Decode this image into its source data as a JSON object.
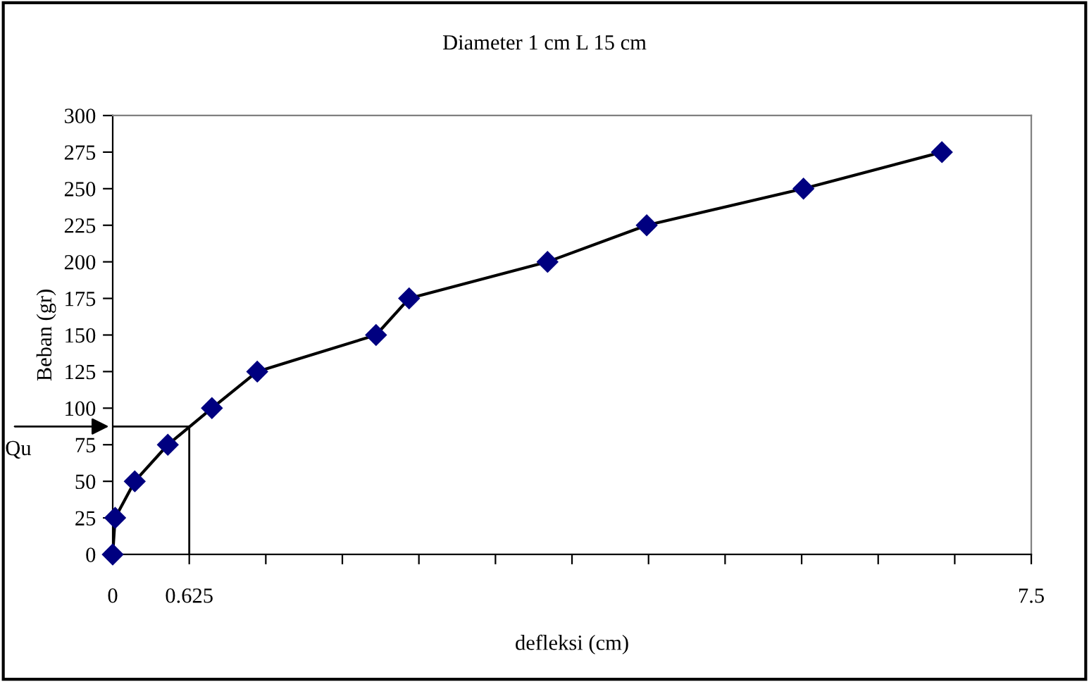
{
  "chart_data": {
    "type": "line",
    "title": "Diameter 1 cm L 15 cm",
    "xlabel": "defleksi (cm)",
    "ylabel": "Beban (gr)",
    "x": [
      0,
      0.02,
      0.18,
      0.45,
      0.81,
      1.18,
      2.15,
      2.42,
      3.55,
      4.36,
      5.64,
      6.77
    ],
    "series": [
      {
        "color": "#000080",
        "values": [
          0,
          25,
          50,
          75,
          100,
          125,
          150,
          175,
          200,
          225,
          250,
          275
        ]
      }
    ],
    "marker": "diamond",
    "line_style": "solid",
    "grid": false,
    "legend": false,
    "xlim": [
      0,
      7.5
    ],
    "ylim": [
      0,
      300
    ],
    "xticks": [
      0,
      0.625,
      {
        "value": 1.25,
        "label": null
      },
      {
        "value": 1.875,
        "label": null
      },
      {
        "value": 2.5,
        "label": null
      },
      {
        "value": 3.125,
        "label": null
      },
      {
        "value": 3.75,
        "label": null
      },
      {
        "value": 4.375,
        "label": null
      },
      {
        "value": 5,
        "label": null
      },
      {
        "value": 5.625,
        "label": null
      },
      {
        "value": 6.25,
        "label": null
      },
      {
        "value": 6.875,
        "label": null
      },
      {
        "value": 7.5,
        "label": "7.5"
      }
    ],
    "yticks": [
      0,
      25,
      50,
      75,
      100,
      125,
      150,
      175,
      200,
      225,
      250,
      275,
      300
    ],
    "ref_lines": [
      {
        "axis": "x",
        "value": 0.625,
        "color": "#000000"
      },
      {
        "axis": "y",
        "value": 87.5,
        "label": "Qu",
        "color": "#000000"
      }
    ]
  }
}
